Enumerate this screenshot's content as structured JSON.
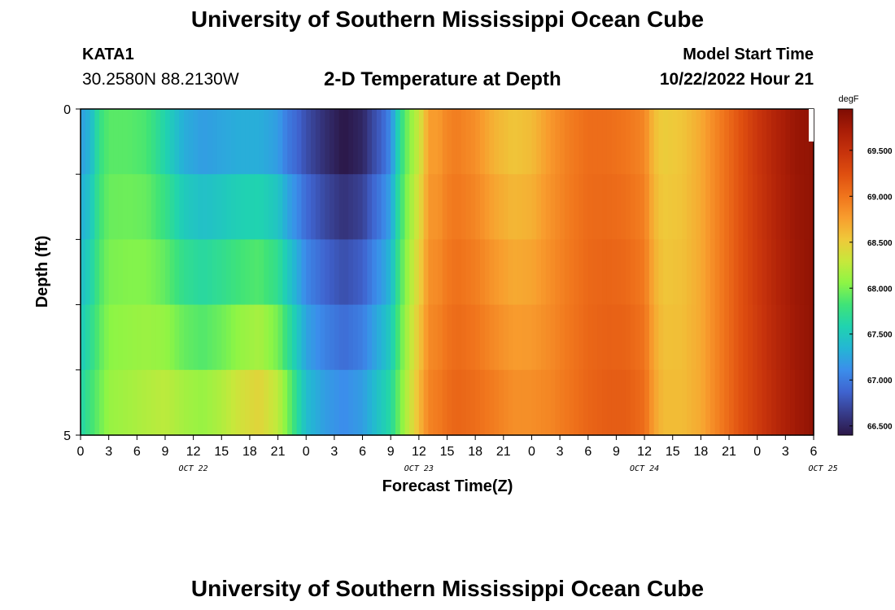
{
  "title": "University of Southern Mississippi Ocean Cube",
  "footer_title": "University of Southern Mississippi Ocean Cube",
  "station": {
    "id": "KATA1",
    "coordinates": "30.2580N  88.2130W"
  },
  "model": {
    "label": "Model Start Time",
    "value": "10/22/2022 Hour 21"
  },
  "chart_data": {
    "type": "heatmap",
    "title": "2-D Temperature at Depth",
    "xlabel": "Forecast Time(Z)",
    "ylabel": "Depth (ft)",
    "x_ticks": [
      "0",
      "3",
      "6",
      "9",
      "12",
      "15",
      "18",
      "21",
      "0",
      "3",
      "6",
      "9",
      "12",
      "15",
      "18",
      "21",
      "0",
      "3",
      "6",
      "9",
      "12",
      "15",
      "18",
      "21",
      "0",
      "3",
      "6"
    ],
    "date_labels": [
      {
        "label": "OCT 22",
        "hours": 12
      },
      {
        "label": "OCT 23",
        "hours": 36
      },
      {
        "label": "OCT 24",
        "hours": 60
      },
      {
        "label": "OCT 25",
        "hours": 79
      }
    ],
    "x_range_hours": [
      0,
      78
    ],
    "y_ticks": [
      "0",
      "5"
    ],
    "y_range": [
      0,
      5
    ],
    "colorbar": {
      "unit": "degF",
      "min": 66.4,
      "max": 69.95,
      "tick_values": [
        66.5,
        67.0,
        67.5,
        68.0,
        68.5,
        69.0,
        69.5
      ],
      "tick_labels": [
        "66.500",
        "67.000",
        "67.500",
        "68.000",
        "68.500",
        "69.000",
        "69.500"
      ],
      "colors": [
        "#2b1747",
        "#373c8a",
        "#3f64d0",
        "#3b8eeb",
        "#24b6d4",
        "#20d3b0",
        "#3fe378",
        "#8df545",
        "#c7e83b",
        "#efc93a",
        "#f89d2e",
        "#f0741c",
        "#df4f10",
        "#c7330c",
        "#a91d07",
        "#7e0c03"
      ]
    },
    "temperature_profile": {
      "hours": [
        0,
        1,
        2,
        3,
        5,
        7,
        9,
        11,
        13,
        15,
        17,
        19,
        21,
        22,
        23,
        24,
        26,
        28,
        30,
        31,
        32,
        33,
        34,
        35,
        36,
        36.5,
        37,
        37.5,
        38,
        38.5,
        39,
        40,
        42,
        44,
        46,
        48,
        50,
        52,
        54,
        56,
        58,
        60,
        61,
        62,
        64,
        66,
        68,
        70,
        72,
        74,
        76,
        78
      ],
      "surface_degF": [
        67.2,
        67.35,
        67.75,
        67.9,
        67.9,
        67.85,
        67.6,
        67.3,
        67.2,
        67.25,
        67.3,
        67.3,
        67.2,
        67.0,
        66.9,
        66.75,
        66.55,
        66.4,
        66.5,
        66.7,
        66.85,
        67.1,
        67.7,
        68.05,
        68.3,
        68.5,
        68.75,
        68.8,
        68.75,
        68.85,
        68.9,
        68.95,
        68.85,
        68.65,
        68.55,
        68.6,
        68.8,
        68.95,
        69.05,
        69.05,
        69.0,
        68.9,
        68.6,
        68.5,
        68.55,
        68.7,
        68.95,
        69.2,
        69.45,
        69.65,
        69.8,
        69.85
      ],
      "bottom_degF": [
        67.6,
        67.8,
        67.95,
        68.1,
        68.15,
        68.2,
        68.25,
        68.15,
        68.1,
        68.2,
        68.35,
        68.45,
        68.25,
        68.0,
        67.7,
        67.4,
        67.2,
        67.1,
        67.2,
        67.35,
        67.5,
        67.65,
        68.0,
        68.3,
        68.6,
        68.75,
        68.9,
        68.95,
        68.95,
        69.0,
        69.05,
        69.1,
        69.05,
        68.95,
        68.85,
        68.85,
        68.9,
        69.0,
        69.1,
        69.15,
        69.15,
        69.05,
        68.75,
        68.6,
        68.6,
        68.7,
        68.95,
        69.2,
        69.4,
        69.6,
        69.75,
        69.85
      ],
      "depth_levels": 5
    }
  }
}
